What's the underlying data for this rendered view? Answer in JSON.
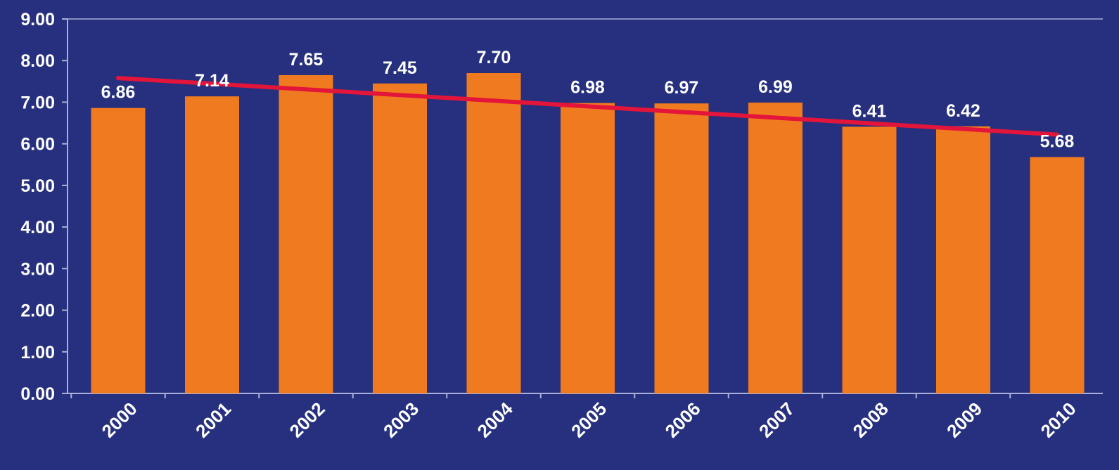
{
  "chart_data": {
    "type": "bar",
    "title": "",
    "xlabel": "",
    "ylabel": "",
    "categories": [
      "2000",
      "2001",
      "2002",
      "2003",
      "2004",
      "2005",
      "2006",
      "2007",
      "2008",
      "2009",
      "2010"
    ],
    "series": [
      {
        "values": [
          6.86,
          7.14,
          7.65,
          7.45,
          7.7,
          6.98,
          6.97,
          6.99,
          6.41,
          6.42,
          5.68
        ],
        "labels": [
          "6.86",
          "7.14",
          "7.65",
          "7.45",
          "7.70",
          "6.98",
          "6.97",
          "6.99",
          "6.41",
          "6.42",
          "5.68"
        ],
        "color": "#f07a1f"
      }
    ],
    "trendline": {
      "type": "linear",
      "start": {
        "x": "2000",
        "y": 7.58
      },
      "end": {
        "x": "2010",
        "y": 6.22
      },
      "color": "#e3153a"
    },
    "ylim": [
      0,
      9
    ],
    "yticks": [
      "0.00",
      "1.00",
      "2.00",
      "3.00",
      "4.00",
      "5.00",
      "6.00",
      "7.00",
      "8.00",
      "9.00"
    ],
    "grid": false,
    "legend": "none",
    "colors": {
      "background": "#26307e",
      "axis": "#a9b0d8",
      "text": "#ffffff"
    }
  }
}
